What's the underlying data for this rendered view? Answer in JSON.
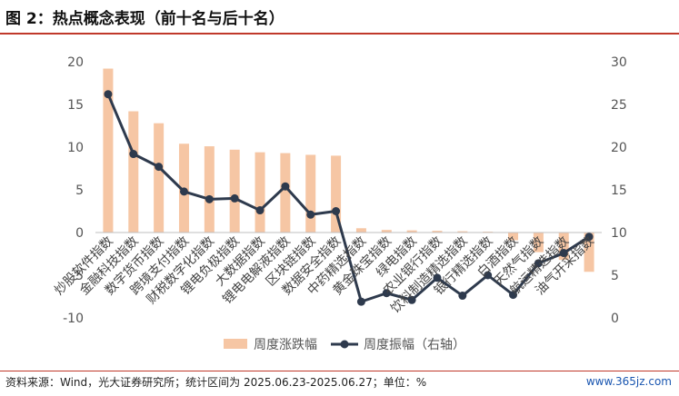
{
  "header": {
    "title": "图 2：热点概念表现（前十名与后十名）"
  },
  "footer": {
    "source": "资料来源：Wind，光大证券研究所；统计区间为 2025.06.23-2025.06.27；单位：%",
    "watermark": "www.365jz.com"
  },
  "colors": {
    "bar": "#f6c6a4",
    "line": "#2e3a4d",
    "accent": "#c0392b"
  },
  "chart_data": {
    "type": "bar",
    "categories": [
      "炒股软件指数",
      "金融科技指数",
      "数字货币指数",
      "跨境支付指数",
      "财税数字化指数",
      "锂电负极指数",
      "大数据指数",
      "锂电电解液指数",
      "区块链指数",
      "数据安全指数",
      "中药精选指数",
      "黄金珠宝指数",
      "绿电指数",
      "农业银行指数",
      "饮料制造精选指数",
      "银行精选指数",
      "白酒指数",
      "天然气指数",
      "航运精选指数",
      "油气开采指数"
    ],
    "series": [
      {
        "name": "周度涨跌幅",
        "type": "bar",
        "axis": "left",
        "values": [
          19.2,
          14.2,
          12.8,
          10.4,
          10.1,
          9.7,
          9.4,
          9.3,
          9.1,
          9.0,
          0.5,
          0.3,
          0.25,
          0.2,
          0.15,
          0.1,
          -0.9,
          -2.3,
          -3.2,
          -4.6
        ]
      },
      {
        "name": "周度振幅（右轴）",
        "type": "line",
        "axis": "right",
        "values": [
          26.2,
          19.2,
          17.7,
          14.8,
          13.9,
          14.0,
          12.6,
          15.4,
          12.1,
          12.5,
          1.9,
          2.9,
          2.1,
          4.7,
          2.6,
          5.0,
          2.7,
          6.4,
          7.6,
          9.5
        ]
      }
    ],
    "y_left": {
      "min": -10,
      "max": 20,
      "ticks": [
        -10,
        -5,
        0,
        5,
        10,
        15,
        20
      ]
    },
    "y_right": {
      "min": 0,
      "max": 30,
      "ticks": [
        0,
        5,
        10,
        15,
        20,
        25,
        30
      ]
    },
    "legend": {
      "position": "bottom",
      "items": [
        "周度涨跌幅",
        "周度振幅（右轴）"
      ]
    },
    "grid": false
  }
}
